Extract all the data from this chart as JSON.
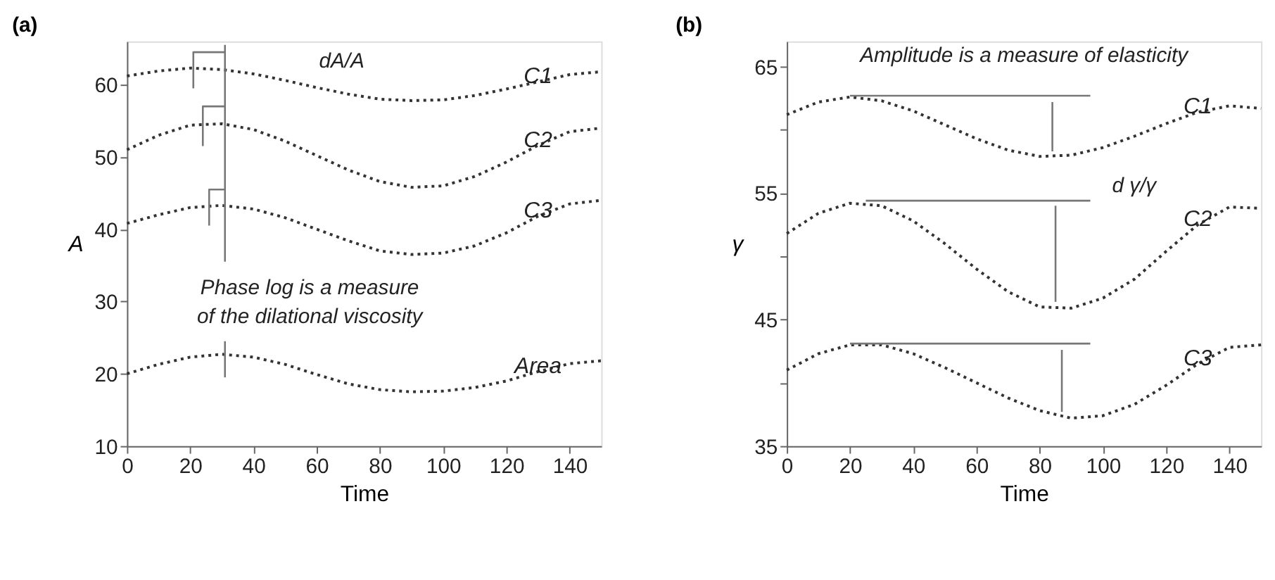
{
  "chart_data": [
    {
      "type": "line",
      "title": "(a)",
      "xlabel": "Time",
      "ylabel": "A",
      "xlim": [
        0,
        150
      ],
      "ylim": [
        10,
        66
      ],
      "xticks": [
        0,
        20,
        40,
        60,
        80,
        100,
        120,
        140
      ],
      "yticks": [
        10,
        20,
        30,
        40,
        50,
        60
      ],
      "grid": false,
      "marker": "none",
      "line_style": "dotted",
      "x": [
        0,
        10,
        20,
        30,
        40,
        50,
        60,
        70,
        80,
        90,
        100,
        110,
        120,
        130,
        140,
        150
      ],
      "series": [
        {
          "name": "C1",
          "color": "#333333",
          "values": [
            61.2,
            61.9,
            62.3,
            62.1,
            61.5,
            60.6,
            59.6,
            58.7,
            58.0,
            57.8,
            57.9,
            58.5,
            59.4,
            60.4,
            61.4,
            61.8
          ]
        },
        {
          "name": "C2",
          "color": "#333333",
          "values": [
            51.0,
            53.0,
            54.4,
            54.6,
            53.8,
            52.2,
            50.2,
            48.2,
            46.6,
            45.8,
            46.0,
            47.3,
            49.3,
            51.6,
            53.5,
            54.0
          ]
        },
        {
          "name": "C3",
          "color": "#333333",
          "values": [
            40.8,
            42.0,
            43.0,
            43.3,
            42.8,
            41.6,
            40.0,
            38.4,
            37.0,
            36.5,
            36.7,
            37.7,
            39.5,
            41.8,
            43.5,
            44.0
          ]
        },
        {
          "name": "Area",
          "color": "#333333",
          "values": [
            20.0,
            21.3,
            22.3,
            22.7,
            22.3,
            21.3,
            19.9,
            18.6,
            17.8,
            17.5,
            17.6,
            18.1,
            19.0,
            20.3,
            21.4,
            21.8
          ]
        },
        {
          "type": "line",
          "line_style": "solid",
          "color": "#777777",
          "x": [
            31,
            31
          ],
          "values": [
            19.5,
            24.5
          ]
        },
        {
          "type": "line",
          "line_style": "solid",
          "color": "#777777",
          "x": [
            31,
            31
          ],
          "values": [
            35.5,
            65.5
          ]
        },
        {
          "type": "line",
          "line_style": "solid",
          "color": "#777777",
          "x": [
            21,
            21,
            31
          ],
          "values": [
            59.5,
            64.5,
            64.5
          ]
        },
        {
          "type": "line",
          "line_style": "solid",
          "color": "#777777",
          "x": [
            24,
            24,
            31
          ],
          "values": [
            51.5,
            57.0,
            57.0
          ]
        },
        {
          "type": "line",
          "line_style": "solid",
          "color": "#777777",
          "x": [
            26,
            26,
            31
          ],
          "values": [
            40.5,
            45.5,
            45.5
          ]
        }
      ],
      "annotations": [
        "dA/A",
        "Phase log is a measure",
        "of the dilational viscosity"
      ]
    },
    {
      "type": "line",
      "title": "(b)",
      "xlabel": "Time",
      "ylabel": "γ",
      "xlim": [
        0,
        150
      ],
      "ylim": [
        35,
        67
      ],
      "xticks": [
        0,
        20,
        40,
        60,
        80,
        100,
        120,
        140
      ],
      "yticks": [
        35,
        {
          "value": 40,
          "label": null
        },
        45,
        {
          "value": 50,
          "label": null
        },
        55,
        {
          "value": 60,
          "label": null
        },
        65
      ],
      "grid": false,
      "marker": "none",
      "line_style": "dotted",
      "x": [
        0,
        10,
        20,
        30,
        40,
        50,
        60,
        70,
        80,
        90,
        100,
        110,
        120,
        130,
        140,
        150
      ],
      "series": [
        {
          "name": "C1",
          "color": "#333333",
          "values": [
            61.2,
            62.2,
            62.6,
            62.3,
            61.5,
            60.4,
            59.3,
            58.4,
            57.9,
            58.0,
            58.6,
            59.5,
            60.5,
            61.4,
            61.9,
            61.7
          ]
        },
        {
          "name": "C2",
          "color": "#333333",
          "values": [
            51.8,
            53.4,
            54.2,
            54.0,
            52.8,
            51.0,
            49.0,
            47.2,
            46.0,
            45.9,
            46.7,
            48.2,
            50.4,
            52.5,
            53.9,
            53.8
          ]
        },
        {
          "name": "C3",
          "color": "#333333",
          "values": [
            41.0,
            42.3,
            43.0,
            43.0,
            42.3,
            41.2,
            40.0,
            38.8,
            37.8,
            37.2,
            37.4,
            38.3,
            39.8,
            41.5,
            42.8,
            43.0
          ]
        },
        {
          "type": "line",
          "line_style": "solid",
          "color": "#777777",
          "x": [
            20,
            96
          ],
          "values": [
            62.7,
            62.7
          ]
        },
        {
          "type": "line",
          "line_style": "solid",
          "color": "#777777",
          "x": [
            25,
            96
          ],
          "values": [
            54.4,
            54.4
          ]
        },
        {
          "type": "line",
          "line_style": "solid",
          "color": "#777777",
          "x": [
            20,
            96
          ],
          "values": [
            43.1,
            43.1
          ]
        },
        {
          "type": "line",
          "line_style": "solid",
          "color": "#777777",
          "x": [
            84,
            84
          ],
          "values": [
            62.2,
            58.3
          ]
        },
        {
          "type": "line",
          "line_style": "solid",
          "color": "#777777",
          "x": [
            85,
            85
          ],
          "values": [
            54.0,
            46.4
          ]
        },
        {
          "type": "line",
          "line_style": "solid",
          "color": "#777777",
          "x": [
            87,
            87
          ],
          "values": [
            42.6,
            37.7
          ]
        }
      ],
      "annotations": [
        "Amplitude is a measure of elasticity",
        "d γ/γ"
      ]
    }
  ]
}
